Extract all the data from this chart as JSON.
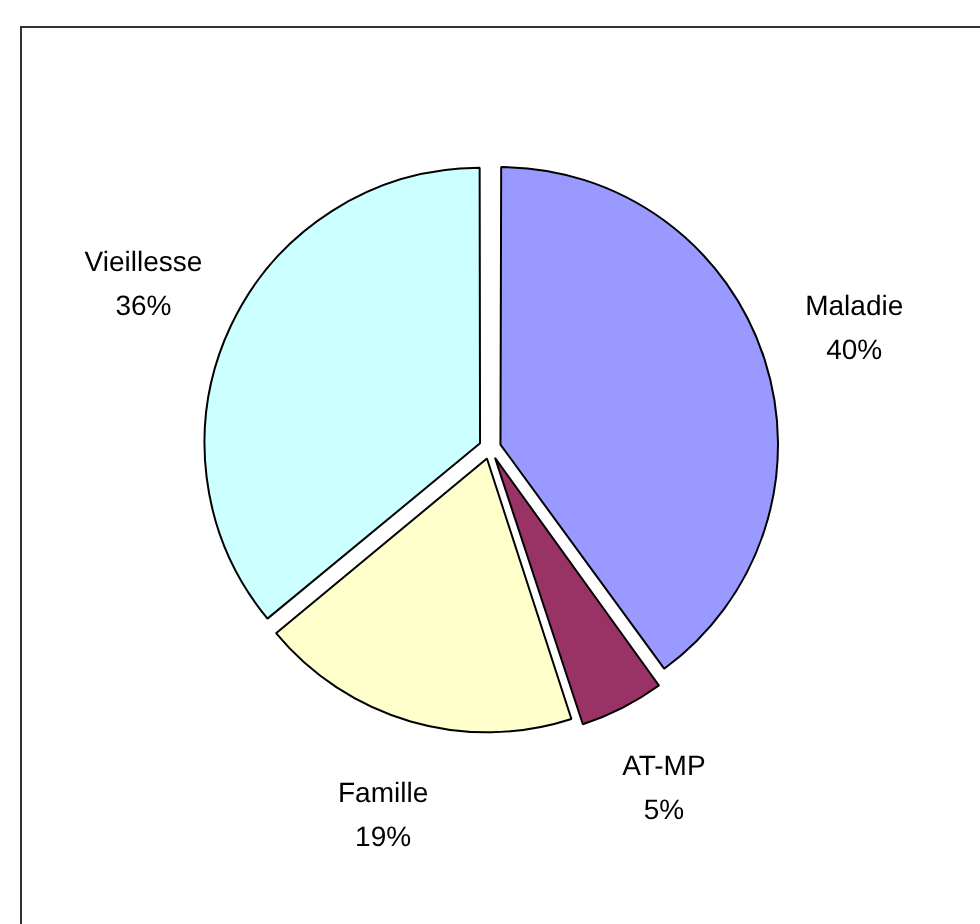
{
  "chart_data": {
    "type": "pie",
    "categories": [
      "Maladie",
      "AT-MP",
      "Famille",
      "Vieillesse"
    ],
    "values": [
      40,
      5,
      19,
      36
    ],
    "value_labels": [
      "40%",
      "5%",
      "19%",
      "36%"
    ],
    "colors": [
      "#9999ff",
      "#993366",
      "#ffffcc",
      "#ccffff"
    ],
    "legend": false
  }
}
